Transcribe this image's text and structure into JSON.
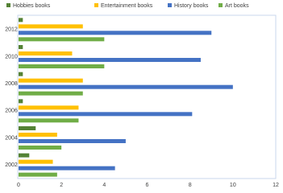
{
  "chart_data": {
    "type": "hbar",
    "categories": [
      "2002",
      "2004",
      "2006",
      "2008",
      "2010",
      "2012"
    ],
    "series": [
      {
        "name": "Hobbies books",
        "color": "#548235",
        "values": [
          0.5,
          0.8,
          0.2,
          0.2,
          0.2,
          0.2
        ]
      },
      {
        "name": "Entertainment books",
        "color": "#ffc000",
        "values": [
          1.6,
          1.8,
          2.8,
          3.0,
          2.5,
          3.0
        ]
      },
      {
        "name": "History books",
        "color": "#4472c4",
        "values": [
          4.5,
          5.0,
          8.1,
          10.0,
          8.5,
          9.0
        ]
      },
      {
        "name": "Art books",
        "color": "#70ad47",
        "values": [
          1.8,
          2.0,
          2.8,
          3.0,
          4.0,
          4.0
        ]
      }
    ],
    "xlim": [
      0,
      12
    ],
    "xticks": [
      0,
      2,
      4,
      6,
      8,
      10,
      12
    ],
    "grid": false,
    "legend": "top"
  }
}
